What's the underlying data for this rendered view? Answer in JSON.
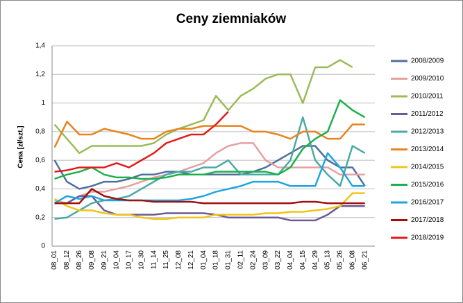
{
  "chart_data": {
    "type": "line",
    "title": "Ceny ziemniaków",
    "y_label": "Cena [zł/szt.]",
    "categories": [
      "08_01",
      "08_12",
      "08_26",
      "09_08",
      "09_21",
      "10_04",
      "10_17",
      "10_30",
      "11_14",
      "11_25",
      "12_08",
      "12_21",
      "01_04",
      "01_18",
      "01_31",
      "02_11",
      "02_24",
      "03_09",
      "03_22",
      "04_04",
      "04_15",
      "04_29",
      "05_13",
      "05_26",
      "06_08",
      "06_21"
    ],
    "ylim": [
      0,
      1.4
    ],
    "yticks": [
      0,
      {
        "value": 0.2,
        "label": "0,2"
      },
      {
        "value": 0.4,
        "label": "0,4"
      },
      {
        "value": 0.6,
        "label": "0,6"
      },
      {
        "value": 0.8,
        "label": "0,8"
      },
      1,
      {
        "value": 1.2,
        "label": "1,2"
      },
      {
        "value": 1.4,
        "label": "1,4"
      }
    ],
    "grid": true,
    "legend": "right",
    "series": [
      {
        "name": "2008/2009",
        "color": "#4f6fa0",
        "values": [
          0.6,
          0.45,
          0.4,
          0.42,
          0.45,
          0.45,
          0.47,
          0.5,
          0.5,
          0.52,
          0.52,
          0.5,
          0.5,
          0.5,
          0.5,
          0.5,
          0.52,
          0.55,
          0.6,
          0.65,
          0.7,
          0.7,
          0.6,
          0.55,
          0.55,
          0.42
        ]
      },
      {
        "name": "2009/2010",
        "color": "#e6a0a0",
        "values": [
          0.32,
          0.3,
          0.35,
          0.38,
          0.38,
          0.4,
          0.42,
          0.45,
          0.48,
          0.5,
          0.52,
          0.55,
          0.58,
          0.65,
          0.7,
          0.72,
          0.72,
          0.6,
          0.55,
          0.55,
          0.55,
          0.55,
          0.55,
          0.5,
          0.5,
          0.5
        ]
      },
      {
        "name": "2010/2011",
        "color": "#9bbb59",
        "values": [
          0.85,
          0.75,
          0.65,
          0.7,
          0.7,
          0.7,
          0.7,
          0.7,
          0.72,
          0.78,
          0.82,
          0.85,
          0.88,
          1.05,
          0.95,
          1.05,
          1.1,
          1.17,
          1.2,
          1.2,
          1.0,
          1.25,
          1.25,
          1.3,
          1.25,
          null
        ]
      },
      {
        "name": "2011/2012",
        "color": "#6b5b95",
        "values": [
          0.3,
          0.3,
          0.35,
          0.35,
          0.25,
          0.22,
          0.22,
          0.22,
          0.22,
          0.23,
          0.23,
          0.23,
          0.23,
          0.22,
          0.2,
          0.2,
          0.2,
          0.2,
          0.2,
          0.18,
          0.18,
          0.18,
          0.22,
          0.28,
          0.28,
          0.28
        ]
      },
      {
        "name": "2012/2013",
        "color": "#4aaaa5",
        "values": [
          0.19,
          0.2,
          0.25,
          0.3,
          0.32,
          0.33,
          0.35,
          0.4,
          0.45,
          0.5,
          0.52,
          0.52,
          0.55,
          0.55,
          0.6,
          0.5,
          0.5,
          0.5,
          0.5,
          0.6,
          0.9,
          0.6,
          0.5,
          0.42,
          0.7,
          0.65
        ]
      },
      {
        "name": "2013/2014",
        "color": "#e8841f",
        "values": [
          0.69,
          0.87,
          0.78,
          0.78,
          0.82,
          0.8,
          0.78,
          0.75,
          0.75,
          0.8,
          0.82,
          0.82,
          0.84,
          0.84,
          0.84,
          0.84,
          0.8,
          0.8,
          0.78,
          0.75,
          0.8,
          0.8,
          0.75,
          0.75,
          0.85,
          0.85
        ]
      },
      {
        "name": "2014/2015",
        "color": "#f0c419",
        "values": [
          0.33,
          0.28,
          0.25,
          0.25,
          0.23,
          0.22,
          0.22,
          0.2,
          0.19,
          0.19,
          0.2,
          0.2,
          0.2,
          0.22,
          0.22,
          0.22,
          0.22,
          0.23,
          0.23,
          0.24,
          0.24,
          0.25,
          0.26,
          0.28,
          0.37,
          0.37
        ]
      },
      {
        "name": "2015/2016",
        "color": "#1db04a",
        "values": [
          0.47,
          0.5,
          0.52,
          0.55,
          0.5,
          0.48,
          0.48,
          0.47,
          0.47,
          0.48,
          0.5,
          0.5,
          0.5,
          0.52,
          0.52,
          0.52,
          0.52,
          0.52,
          0.5,
          0.55,
          0.68,
          0.75,
          0.8,
          1.02,
          0.95,
          0.9
        ]
      },
      {
        "name": "2016/2017",
        "color": "#1ea5e0",
        "values": [
          0.3,
          0.35,
          0.33,
          0.35,
          0.32,
          0.32,
          0.32,
          0.32,
          0.32,
          0.32,
          0.32,
          0.33,
          0.35,
          0.38,
          0.4,
          0.42,
          0.45,
          0.45,
          0.45,
          0.42,
          0.42,
          0.42,
          0.65,
          0.55,
          0.42,
          0.42
        ]
      },
      {
        "name": "2017/2018",
        "color": "#a01010",
        "values": [
          0.3,
          0.3,
          0.3,
          0.4,
          0.35,
          0.33,
          0.32,
          0.32,
          0.31,
          0.31,
          0.31,
          0.31,
          0.3,
          0.3,
          0.3,
          0.3,
          0.3,
          0.3,
          0.3,
          0.3,
          0.31,
          0.31,
          0.3,
          0.3,
          0.3,
          0.3
        ]
      },
      {
        "name": "2018/2019",
        "color": "#e41a1a",
        "values": [
          0.52,
          0.53,
          0.55,
          0.55,
          0.55,
          0.58,
          0.55,
          0.6,
          0.65,
          0.72,
          0.75,
          0.78,
          0.78,
          0.85,
          0.94,
          null,
          null,
          null,
          null,
          null,
          null,
          null,
          null,
          null,
          null,
          null
        ]
      }
    ]
  }
}
